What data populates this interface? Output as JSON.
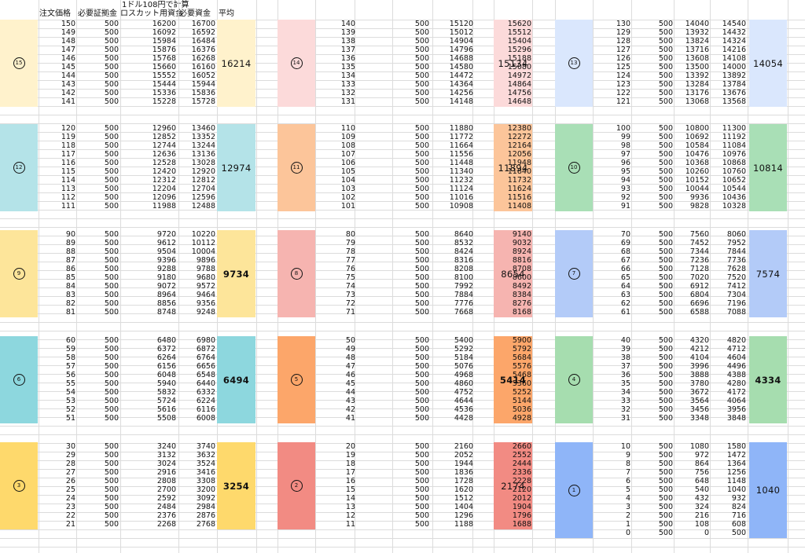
{
  "header": {
    "note": "1ドル108円で計算",
    "columns": [
      "注文価格",
      "必要証拠金",
      "ロスカット用資金",
      "必要資金",
      "平均"
    ]
  },
  "colors": {
    "15": "#fff2cc",
    "14": "#fcdada",
    "13": "#dae7fd",
    "12": "#b4e3e8",
    "11": "#fcc59a",
    "10": "#a9dfb6",
    "9": "#fde59a",
    "8": "#f6b4b0",
    "7": "#b3cbf8",
    "6": "#8dd7de",
    "5": "#fca66a",
    "4": "#a6ddaf",
    "3": "#fed96c",
    "2": "#f28b83",
    "1": "#8fb5f8"
  },
  "groups": [
    {
      "num": 15,
      "badge": "15",
      "avg": "16214",
      "bold": false,
      "rows": [
        [
          150,
          500,
          16200,
          16700
        ],
        [
          149,
          500,
          16092,
          16592
        ],
        [
          148,
          500,
          15984,
          16484
        ],
        [
          147,
          500,
          15876,
          16376
        ],
        [
          146,
          500,
          15768,
          16268
        ],
        [
          145,
          500,
          15660,
          16160
        ],
        [
          144,
          500,
          15552,
          16052
        ],
        [
          143,
          500,
          15444,
          15944
        ],
        [
          142,
          500,
          15336,
          15836
        ],
        [
          141,
          500,
          15228,
          15728
        ]
      ]
    },
    {
      "num": 14,
      "badge": "14",
      "avg": "15134",
      "bold": false,
      "rows": [
        [
          140,
          500,
          15120,
          15620
        ],
        [
          139,
          500,
          15012,
          15512
        ],
        [
          138,
          500,
          14904,
          15404
        ],
        [
          137,
          500,
          14796,
          15296
        ],
        [
          136,
          500,
          14688,
          15188
        ],
        [
          135,
          500,
          14580,
          15080
        ],
        [
          134,
          500,
          14472,
          14972
        ],
        [
          133,
          500,
          14364,
          14864
        ],
        [
          132,
          500,
          14256,
          14756
        ],
        [
          131,
          500,
          14148,
          14648
        ]
      ]
    },
    {
      "num": 13,
      "badge": "13",
      "avg": "14054",
      "bold": false,
      "rows": [
        [
          130,
          500,
          14040,
          14540
        ],
        [
          129,
          500,
          13932,
          14432
        ],
        [
          128,
          500,
          13824,
          14324
        ],
        [
          127,
          500,
          13716,
          14216
        ],
        [
          126,
          500,
          13608,
          14108
        ],
        [
          125,
          500,
          13500,
          14000
        ],
        [
          124,
          500,
          13392,
          13892
        ],
        [
          123,
          500,
          13284,
          13784
        ],
        [
          122,
          500,
          13176,
          13676
        ],
        [
          121,
          500,
          13068,
          13568
        ]
      ]
    },
    {
      "num": 12,
      "badge": "12",
      "avg": "12974",
      "bold": false,
      "rows": [
        [
          120,
          500,
          12960,
          13460
        ],
        [
          119,
          500,
          12852,
          13352
        ],
        [
          118,
          500,
          12744,
          13244
        ],
        [
          117,
          500,
          12636,
          13136
        ],
        [
          116,
          500,
          12528,
          13028
        ],
        [
          115,
          500,
          12420,
          12920
        ],
        [
          114,
          500,
          12312,
          12812
        ],
        [
          113,
          500,
          12204,
          12704
        ],
        [
          112,
          500,
          12096,
          12596
        ],
        [
          111,
          500,
          11988,
          12488
        ]
      ]
    },
    {
      "num": 11,
      "badge": "11",
      "avg": "11894",
      "bold": false,
      "rows": [
        [
          110,
          500,
          11880,
          12380
        ],
        [
          109,
          500,
          11772,
          12272
        ],
        [
          108,
          500,
          11664,
          12164
        ],
        [
          107,
          500,
          11556,
          12056
        ],
        [
          106,
          500,
          11448,
          11948
        ],
        [
          105,
          500,
          11340,
          11840
        ],
        [
          104,
          500,
          11232,
          11732
        ],
        [
          103,
          500,
          11124,
          11624
        ],
        [
          102,
          500,
          11016,
          11516
        ],
        [
          101,
          500,
          10908,
          11408
        ]
      ]
    },
    {
      "num": 10,
      "badge": "10",
      "avg": "10814",
      "bold": false,
      "rows": [
        [
          100,
          500,
          10800,
          11300
        ],
        [
          99,
          500,
          10692,
          11192
        ],
        [
          98,
          500,
          10584,
          11084
        ],
        [
          97,
          500,
          10476,
          10976
        ],
        [
          96,
          500,
          10368,
          10868
        ],
        [
          95,
          500,
          10260,
          10760
        ],
        [
          94,
          500,
          10152,
          10652
        ],
        [
          93,
          500,
          10044,
          10544
        ],
        [
          92,
          500,
          9936,
          10436
        ],
        [
          91,
          500,
          9828,
          10328
        ]
      ]
    },
    {
      "num": 9,
      "badge": "9",
      "avg": "9734",
      "bold": true,
      "rows": [
        [
          90,
          500,
          9720,
          10220
        ],
        [
          89,
          500,
          9612,
          10112
        ],
        [
          88,
          500,
          9504,
          10004
        ],
        [
          87,
          500,
          9396,
          9896
        ],
        [
          86,
          500,
          9288,
          9788
        ],
        [
          85,
          500,
          9180,
          9680
        ],
        [
          84,
          500,
          9072,
          9572
        ],
        [
          83,
          500,
          8964,
          9464
        ],
        [
          82,
          500,
          8856,
          9356
        ],
        [
          81,
          500,
          8748,
          9248
        ]
      ]
    },
    {
      "num": 8,
      "badge": "8",
      "avg": "8654",
      "bold": false,
      "rows": [
        [
          80,
          500,
          8640,
          9140
        ],
        [
          79,
          500,
          8532,
          9032
        ],
        [
          78,
          500,
          8424,
          8924
        ],
        [
          77,
          500,
          8316,
          8816
        ],
        [
          76,
          500,
          8208,
          8708
        ],
        [
          75,
          500,
          8100,
          8600
        ],
        [
          74,
          500,
          7992,
          8492
        ],
        [
          73,
          500,
          7884,
          8384
        ],
        [
          72,
          500,
          7776,
          8276
        ],
        [
          71,
          500,
          7668,
          8168
        ]
      ]
    },
    {
      "num": 7,
      "badge": "7",
      "avg": "7574",
      "bold": false,
      "rows": [
        [
          70,
          500,
          7560,
          8060
        ],
        [
          69,
          500,
          7452,
          7952
        ],
        [
          68,
          500,
          7344,
          7844
        ],
        [
          67,
          500,
          7236,
          7736
        ],
        [
          66,
          500,
          7128,
          7628
        ],
        [
          65,
          500,
          7020,
          7520
        ],
        [
          64,
          500,
          6912,
          7412
        ],
        [
          63,
          500,
          6804,
          7304
        ],
        [
          62,
          500,
          6696,
          7196
        ],
        [
          61,
          500,
          6588,
          7088
        ]
      ]
    },
    {
      "num": 6,
      "badge": "6",
      "avg": "6494",
      "bold": true,
      "rows": [
        [
          60,
          500,
          6480,
          6980
        ],
        [
          59,
          500,
          6372,
          6872
        ],
        [
          58,
          500,
          6264,
          6764
        ],
        [
          57,
          500,
          6156,
          6656
        ],
        [
          56,
          500,
          6048,
          6548
        ],
        [
          55,
          500,
          5940,
          6440
        ],
        [
          54,
          500,
          5832,
          6332
        ],
        [
          53,
          500,
          5724,
          6224
        ],
        [
          52,
          500,
          5616,
          6116
        ],
        [
          51,
          500,
          5508,
          6008
        ]
      ]
    },
    {
      "num": 5,
      "badge": "5",
      "avg": "5414",
      "bold": true,
      "rows": [
        [
          50,
          500,
          5400,
          5900
        ],
        [
          49,
          500,
          5292,
          5792
        ],
        [
          48,
          500,
          5184,
          5684
        ],
        [
          47,
          500,
          5076,
          5576
        ],
        [
          46,
          500,
          4968,
          5468
        ],
        [
          45,
          500,
          4860,
          5360
        ],
        [
          44,
          500,
          4752,
          5252
        ],
        [
          43,
          500,
          4644,
          5144
        ],
        [
          42,
          500,
          4536,
          5036
        ],
        [
          41,
          500,
          4428,
          4928
        ]
      ]
    },
    {
      "num": 4,
      "badge": "4",
      "avg": "4334",
      "bold": true,
      "rows": [
        [
          40,
          500,
          4320,
          4820
        ],
        [
          39,
          500,
          4212,
          4712
        ],
        [
          38,
          500,
          4104,
          4604
        ],
        [
          37,
          500,
          3996,
          4496
        ],
        [
          36,
          500,
          3888,
          4388
        ],
        [
          35,
          500,
          3780,
          4280
        ],
        [
          34,
          500,
          3672,
          4172
        ],
        [
          33,
          500,
          3564,
          4064
        ],
        [
          32,
          500,
          3456,
          3956
        ],
        [
          31,
          500,
          3348,
          3848
        ]
      ]
    },
    {
      "num": 3,
      "badge": "3",
      "avg": "3254",
      "bold": true,
      "rows": [
        [
          30,
          500,
          3240,
          3740
        ],
        [
          29,
          500,
          3132,
          3632
        ],
        [
          28,
          500,
          3024,
          3524
        ],
        [
          27,
          500,
          2916,
          3416
        ],
        [
          26,
          500,
          2808,
          3308
        ],
        [
          25,
          500,
          2700,
          3200
        ],
        [
          24,
          500,
          2592,
          3092
        ],
        [
          23,
          500,
          2484,
          2984
        ],
        [
          22,
          500,
          2376,
          2876
        ],
        [
          21,
          500,
          2268,
          2768
        ]
      ]
    },
    {
      "num": 2,
      "badge": "2",
      "avg": "2174",
      "bold": false,
      "rows": [
        [
          20,
          500,
          2160,
          2660
        ],
        [
          19,
          500,
          2052,
          2552
        ],
        [
          18,
          500,
          1944,
          2444
        ],
        [
          17,
          500,
          1836,
          2336
        ],
        [
          16,
          500,
          1728,
          2228
        ],
        [
          15,
          500,
          1620,
          2120
        ],
        [
          14,
          500,
          1512,
          2012
        ],
        [
          13,
          500,
          1404,
          1904
        ],
        [
          12,
          500,
          1296,
          1796
        ],
        [
          11,
          500,
          1188,
          1688
        ]
      ]
    },
    {
      "num": 1,
      "badge": "1",
      "avg": "1040",
      "bold": false,
      "rows": [
        [
          10,
          500,
          1080,
          1580
        ],
        [
          9,
          500,
          972,
          1472
        ],
        [
          8,
          500,
          864,
          1364
        ],
        [
          7,
          500,
          756,
          1256
        ],
        [
          6,
          500,
          648,
          1148
        ],
        [
          5,
          500,
          540,
          1040
        ],
        [
          4,
          500,
          432,
          932
        ],
        [
          3,
          500,
          324,
          824
        ],
        [
          2,
          500,
          216,
          716
        ],
        [
          1,
          500,
          108,
          608
        ],
        [
          0,
          500,
          0,
          500
        ]
      ]
    }
  ]
}
